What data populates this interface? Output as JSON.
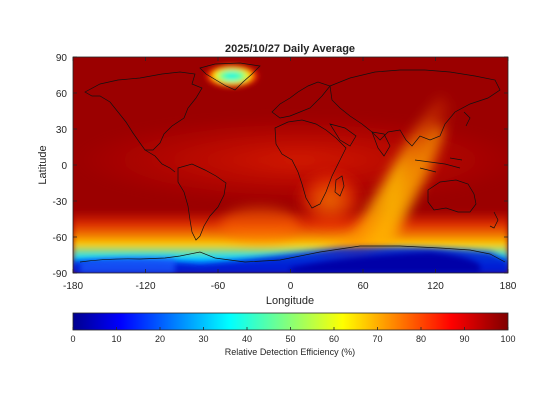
{
  "chart_data": {
    "type": "heatmap",
    "title": "2025/10/27 Daily Average",
    "xlabel": "Longitude",
    "ylabel": "Latitude",
    "xlim": [
      -180,
      180
    ],
    "ylim": [
      -90,
      90
    ],
    "xticks": [
      -180,
      -120,
      -60,
      0,
      60,
      120,
      180
    ],
    "yticks": [
      90,
      60,
      30,
      0,
      -30,
      -60,
      -90
    ],
    "colorbar": {
      "label": "Relative Detection Efficiency (%)",
      "range": [
        0,
        100
      ],
      "ticks": [
        0,
        10,
        20,
        30,
        40,
        50,
        60,
        70,
        80,
        90,
        100
      ],
      "colormap": "jet"
    },
    "background_value": 93,
    "features": [
      {
        "lon": -25,
        "lat": 72,
        "value": 25
      },
      {
        "lon": 30,
        "lat": -50,
        "value": 70
      },
      {
        "lon": 70,
        "lat": -20,
        "value": 80
      },
      {
        "lon": 100,
        "lat": -80,
        "value": 5
      },
      {
        "lon": -100,
        "lat": -84,
        "value": 20
      }
    ]
  }
}
